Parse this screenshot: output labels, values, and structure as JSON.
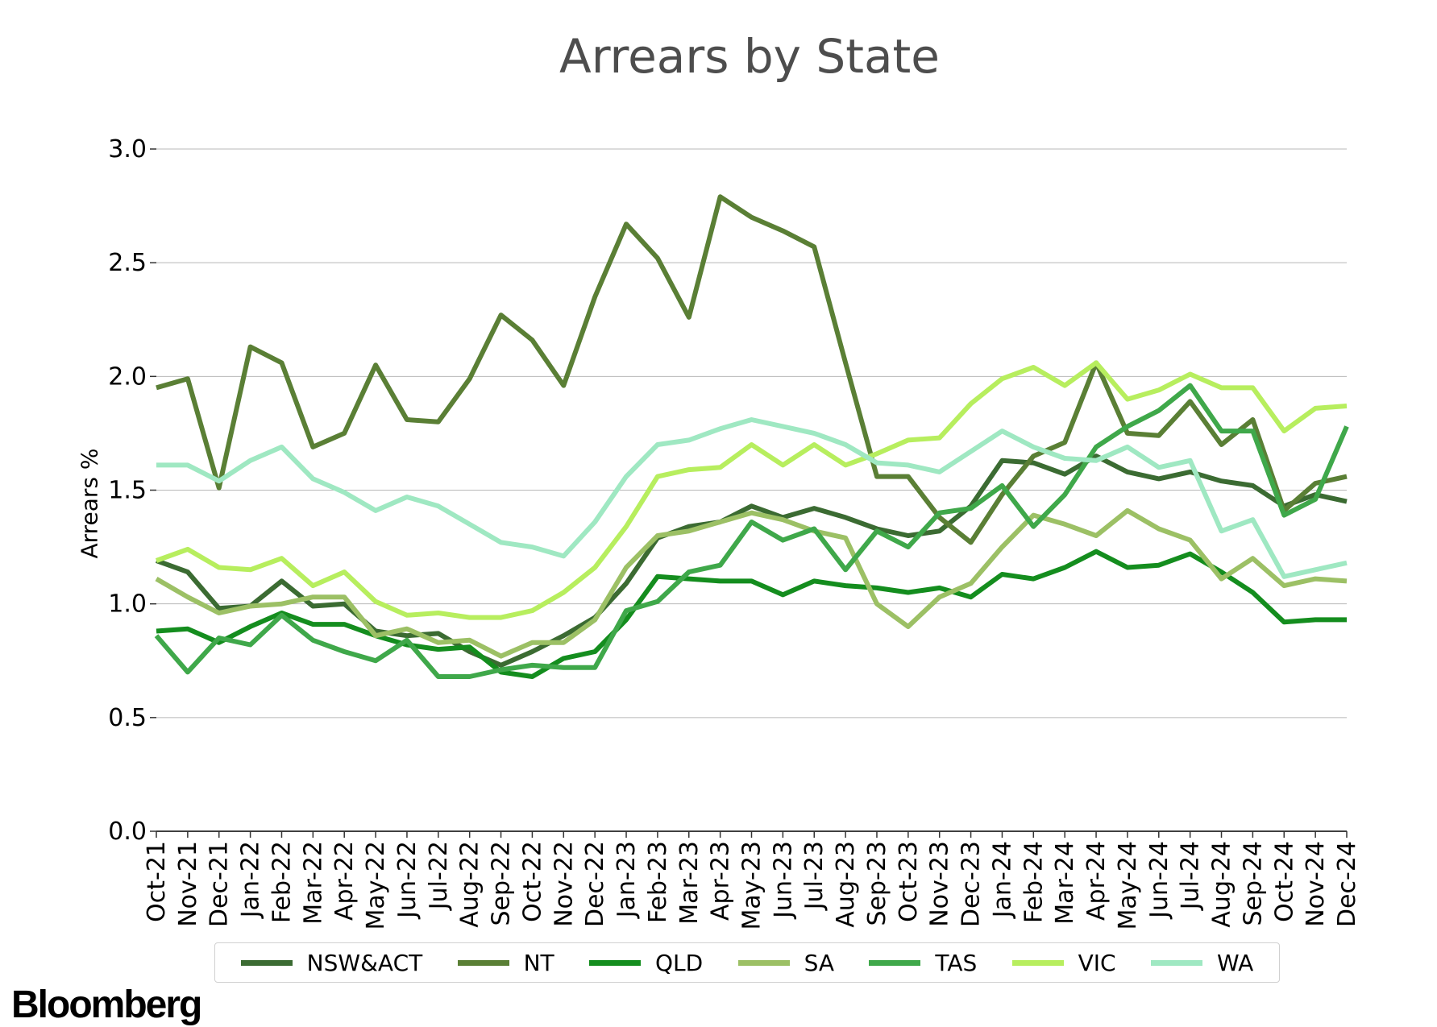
{
  "brand": "Bloomberg",
  "chart_data": {
    "type": "line",
    "title": "Arrears by State",
    "xlabel": "",
    "ylabel": "Arrears %",
    "ylim": [
      0,
      3.0
    ],
    "yticks": [
      "0.0",
      "0.5",
      "1.0",
      "1.5",
      "2.0",
      "2.5",
      "3.0"
    ],
    "grid": "horizontal",
    "legend_position": "bottom",
    "categories": [
      "Oct-21",
      "Nov-21",
      "Dec-21",
      "Jan-22",
      "Feb-22",
      "Mar-22",
      "Apr-22",
      "May-22",
      "Jun-22",
      "Jul-22",
      "Aug-22",
      "Sep-22",
      "Oct-22",
      "Nov-22",
      "Dec-22",
      "Jan-23",
      "Feb-23",
      "Mar-23",
      "Apr-23",
      "May-23",
      "Jun-23",
      "Jul-23",
      "Aug-23",
      "Sep-23",
      "Oct-23",
      "Nov-23",
      "Dec-23",
      "Jan-24",
      "Feb-24",
      "Mar-24",
      "Apr-24",
      "May-24",
      "Jun-24",
      "Jul-24",
      "Aug-24",
      "Sep-24",
      "Oct-24",
      "Nov-24",
      "Dec-24"
    ],
    "series": [
      {
        "name": "NSW&ACT",
        "color": "#3b6b32",
        "values": [
          1.19,
          1.14,
          0.98,
          0.99,
          1.1,
          0.99,
          1.0,
          0.88,
          0.86,
          0.87,
          0.79,
          0.73,
          0.79,
          0.86,
          0.94,
          1.09,
          1.29,
          1.34,
          1.36,
          1.43,
          1.38,
          1.42,
          1.38,
          1.33,
          1.3,
          1.32,
          1.43,
          1.63,
          1.62,
          1.57,
          1.65,
          1.58,
          1.55,
          1.58,
          1.54,
          1.52,
          1.43,
          1.48,
          1.45
        ]
      },
      {
        "name": "NT",
        "color": "#5a7f35",
        "values": [
          1.95,
          1.99,
          1.51,
          2.13,
          2.06,
          1.69,
          1.75,
          2.05,
          1.81,
          1.8,
          1.99,
          2.27,
          2.16,
          1.96,
          2.35,
          2.67,
          2.52,
          2.26,
          2.79,
          2.7,
          2.64,
          2.57,
          2.06,
          1.56,
          1.56,
          1.38,
          1.27,
          1.48,
          1.65,
          1.71,
          2.06,
          1.75,
          1.74,
          1.89,
          1.7,
          1.81,
          1.41,
          1.53,
          1.56
        ]
      },
      {
        "name": "QLD",
        "color": "#148d1e",
        "values": [
          0.88,
          0.89,
          0.83,
          0.9,
          0.96,
          0.91,
          0.91,
          0.86,
          0.82,
          0.8,
          0.81,
          0.7,
          0.68,
          0.76,
          0.79,
          0.93,
          1.12,
          1.11,
          1.1,
          1.1,
          1.04,
          1.1,
          1.08,
          1.07,
          1.05,
          1.07,
          1.03,
          1.13,
          1.11,
          1.16,
          1.23,
          1.16,
          1.17,
          1.22,
          1.14,
          1.05,
          0.92,
          0.93,
          0.93
        ]
      },
      {
        "name": "SA",
        "color": "#9cc065",
        "values": [
          1.11,
          1.03,
          0.96,
          0.99,
          1.0,
          1.03,
          1.03,
          0.86,
          0.89,
          0.83,
          0.84,
          0.77,
          0.83,
          0.83,
          0.93,
          1.16,
          1.3,
          1.32,
          1.36,
          1.4,
          1.37,
          1.32,
          1.29,
          1.0,
          0.9,
          1.03,
          1.09,
          1.25,
          1.39,
          1.35,
          1.3,
          1.41,
          1.33,
          1.28,
          1.11,
          1.2,
          1.08,
          1.11,
          1.1
        ]
      },
      {
        "name": "TAS",
        "color": "#3fa84a",
        "values": [
          0.86,
          0.7,
          0.85,
          0.82,
          0.95,
          0.84,
          0.79,
          0.75,
          0.84,
          0.68,
          0.68,
          0.71,
          0.73,
          0.72,
          0.72,
          0.97,
          1.01,
          1.14,
          1.17,
          1.36,
          1.28,
          1.33,
          1.15,
          1.32,
          1.25,
          1.4,
          1.42,
          1.52,
          1.34,
          1.48,
          1.69,
          1.78,
          1.85,
          1.96,
          1.76,
          1.76,
          1.39,
          1.46,
          1.78
        ]
      },
      {
        "name": "VIC",
        "color": "#b7ee5e",
        "values": [
          1.19,
          1.24,
          1.16,
          1.15,
          1.2,
          1.08,
          1.14,
          1.01,
          0.95,
          0.96,
          0.94,
          0.94,
          0.97,
          1.05,
          1.16,
          1.34,
          1.56,
          1.59,
          1.6,
          1.7,
          1.61,
          1.7,
          1.61,
          1.66,
          1.72,
          1.73,
          1.88,
          1.99,
          2.04,
          1.96,
          2.06,
          1.9,
          1.94,
          2.01,
          1.95,
          1.95,
          1.76,
          1.86,
          1.87
        ]
      },
      {
        "name": "WA",
        "color": "#9fe8c2",
        "values": [
          1.61,
          1.61,
          1.54,
          1.63,
          1.69,
          1.55,
          1.49,
          1.41,
          1.47,
          1.43,
          1.35,
          1.27,
          1.25,
          1.21,
          1.36,
          1.56,
          1.7,
          1.72,
          1.77,
          1.81,
          1.78,
          1.75,
          1.7,
          1.62,
          1.61,
          1.58,
          1.67,
          1.76,
          1.69,
          1.64,
          1.63,
          1.69,
          1.6,
          1.63,
          1.32,
          1.37,
          1.12,
          1.15,
          1.18
        ]
      }
    ]
  }
}
